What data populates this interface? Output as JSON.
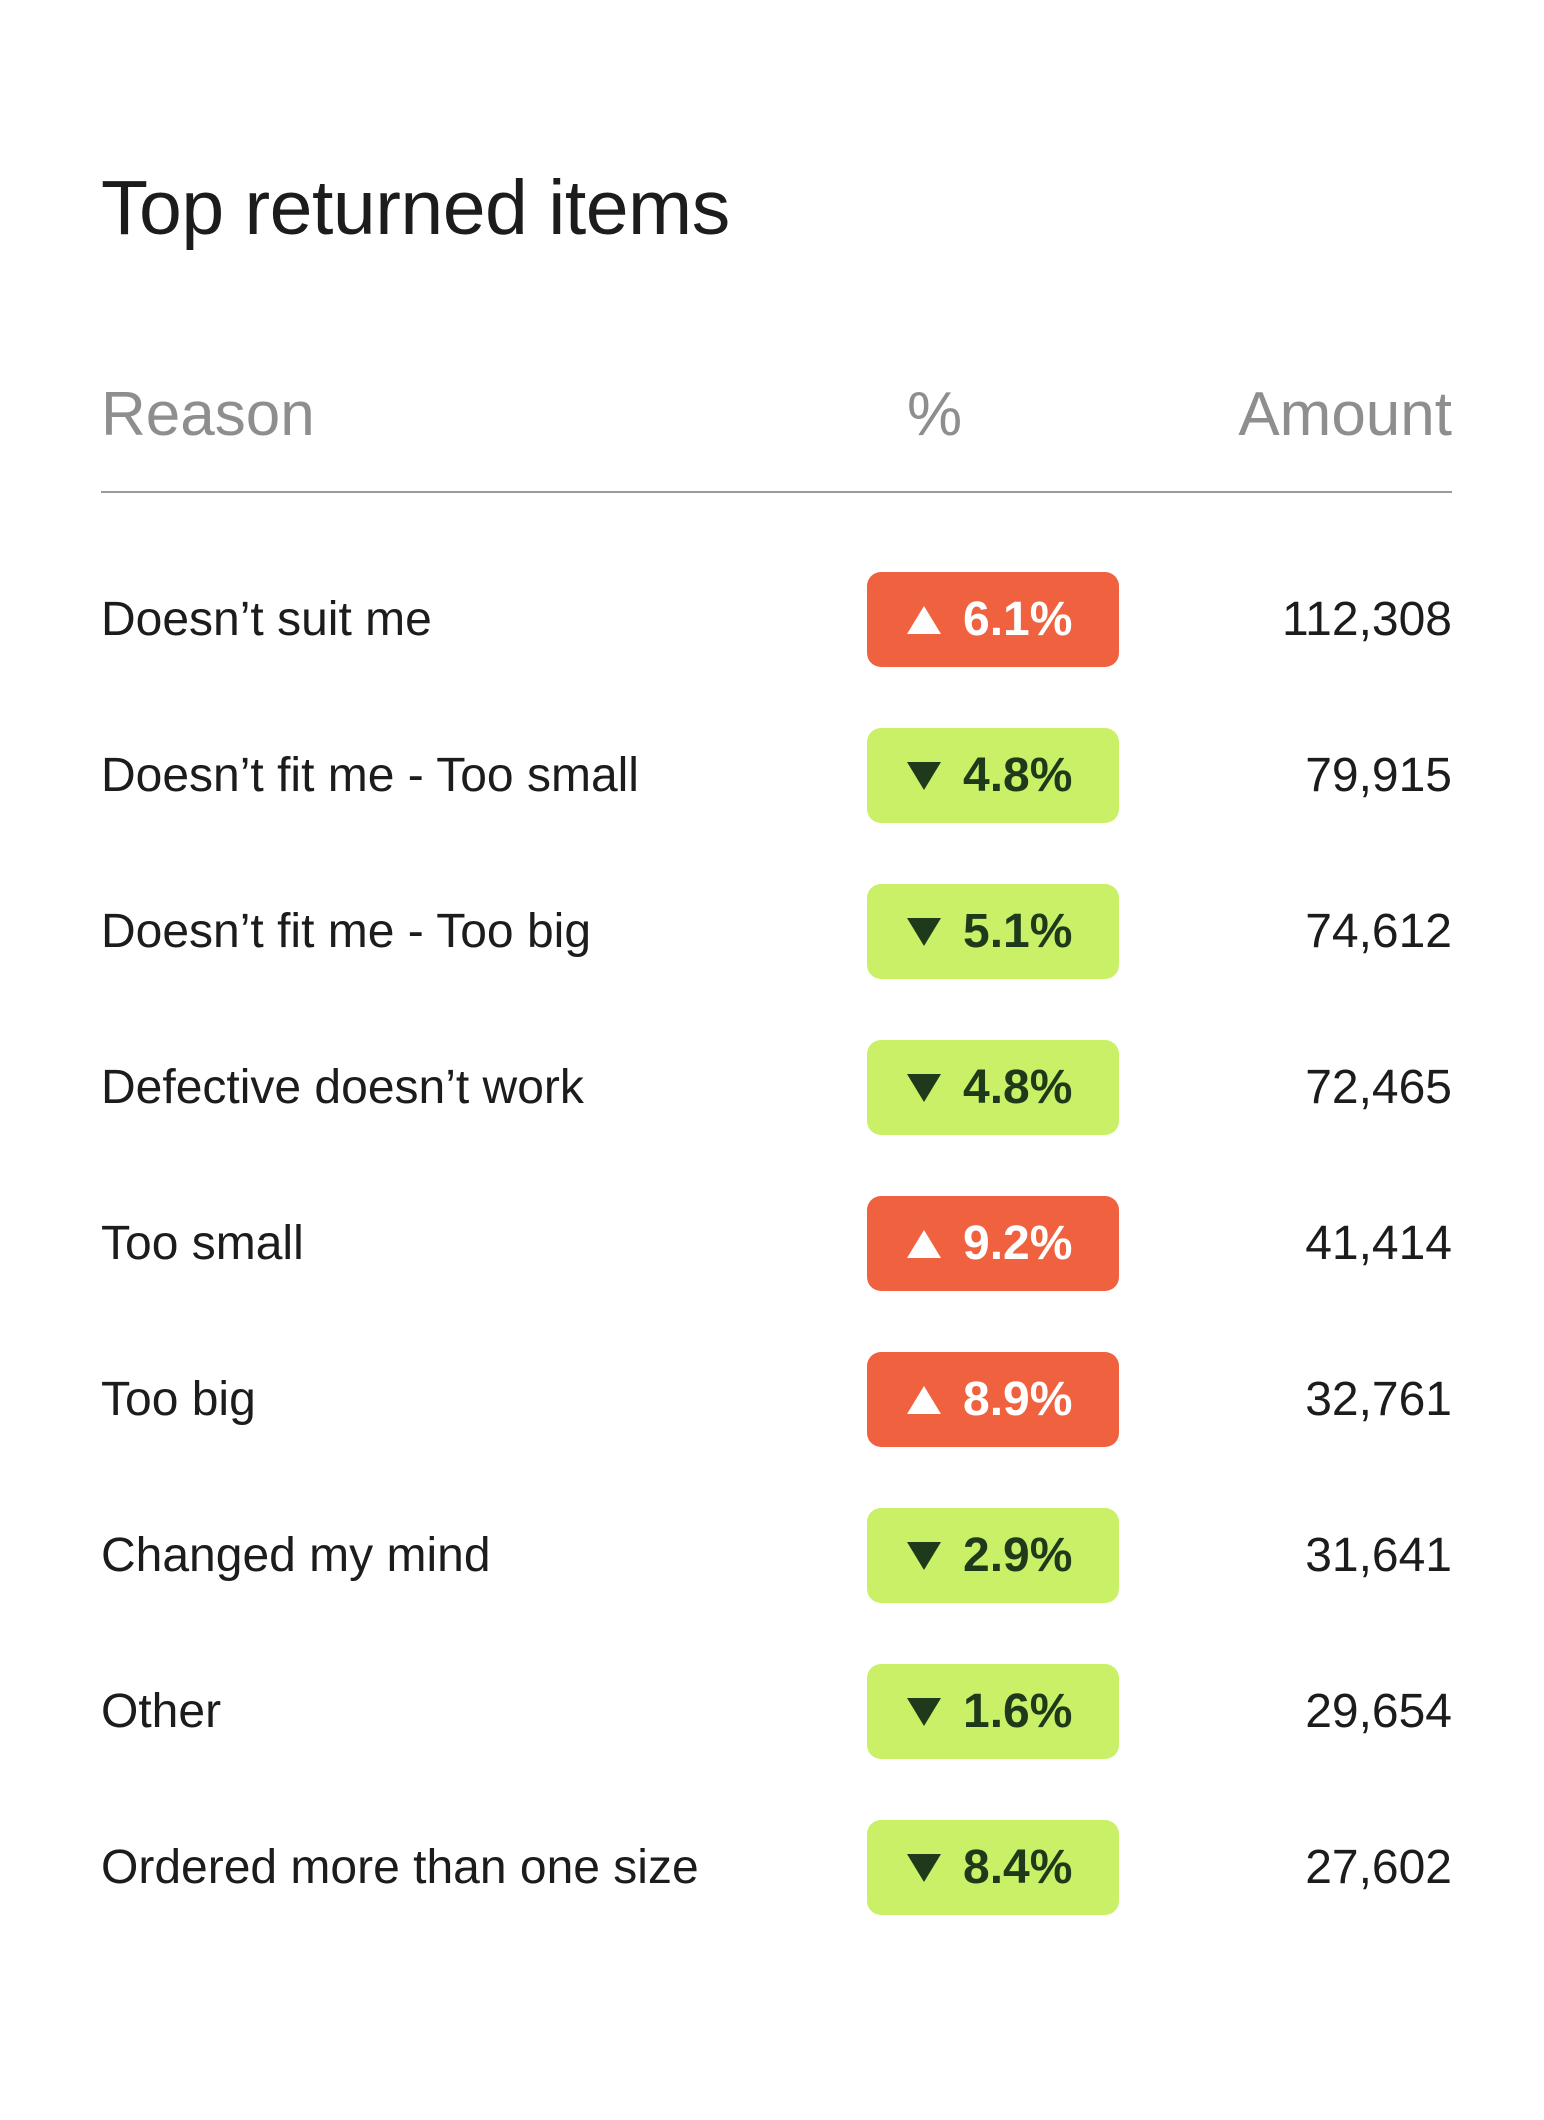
{
  "title": "Top returned items",
  "columns": {
    "reason": "Reason",
    "percent": "%",
    "amount": "Amount"
  },
  "colors": {
    "up_badge": "#f0623f",
    "down_badge": "#c9f067",
    "down_text": "#1e3a1a",
    "header_text": "#8e8e8e"
  },
  "rows": [
    {
      "reason": "Doesn’t suit me",
      "direction": "up",
      "change": "6.1%",
      "amount": "112,308"
    },
    {
      "reason": "Doesn’t fit me - Too small",
      "direction": "down",
      "change": "4.8%",
      "amount": "79,915"
    },
    {
      "reason": "Doesn’t fit me - Too big",
      "direction": "down",
      "change": "5.1%",
      "amount": "74,612"
    },
    {
      "reason": "Defective doesn’t work",
      "direction": "down",
      "change": "4.8%",
      "amount": "72,465"
    },
    {
      "reason": "Too small",
      "direction": "up",
      "change": "9.2%",
      "amount": "41,414"
    },
    {
      "reason": "Too big",
      "direction": "up",
      "change": "8.9%",
      "amount": "32,761"
    },
    {
      "reason": "Changed my mind",
      "direction": "down",
      "change": "2.9%",
      "amount": "31,641"
    },
    {
      "reason": "Other",
      "direction": "down",
      "change": "1.6%",
      "amount": "29,654"
    },
    {
      "reason": "Ordered more than one size",
      "direction": "down",
      "change": "8.4%",
      "amount": "27,602"
    }
  ]
}
